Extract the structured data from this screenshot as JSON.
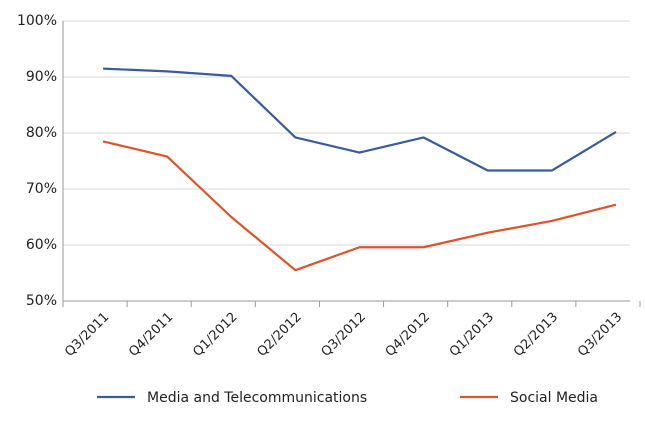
{
  "chart_data": {
    "type": "line",
    "categories": [
      "Q3/2011",
      "Q4/2011",
      "Q1/2012",
      "Q2/2012",
      "Q3/2012",
      "Q4/2012",
      "Q1/2013",
      "Q2/2013",
      "Q3/2013"
    ],
    "series": [
      {
        "name": "Media and Telecommunications",
        "color": "#3a5ba0",
        "values": [
          91.5,
          91,
          90.2,
          79.2,
          76.5,
          79.2,
          73.3,
          73.3,
          80.2
        ]
      },
      {
        "name": "Social Media",
        "color": "#e0522a",
        "values": [
          78.5,
          75.8,
          65,
          55.5,
          59.6,
          59.6,
          62.2,
          64.3,
          67.2
        ]
      }
    ],
    "ylim": [
      50,
      100
    ],
    "yticks": [
      {
        "value": 50,
        "label": "50%"
      },
      {
        "value": 60,
        "label": "60%"
      },
      {
        "value": 70,
        "label": "70%"
      },
      {
        "value": 80,
        "label": "80%"
      },
      {
        "value": 90,
        "label": "90%"
      },
      {
        "value": 100,
        "label": "100%"
      }
    ],
    "grid": true,
    "legend": "bottom"
  }
}
